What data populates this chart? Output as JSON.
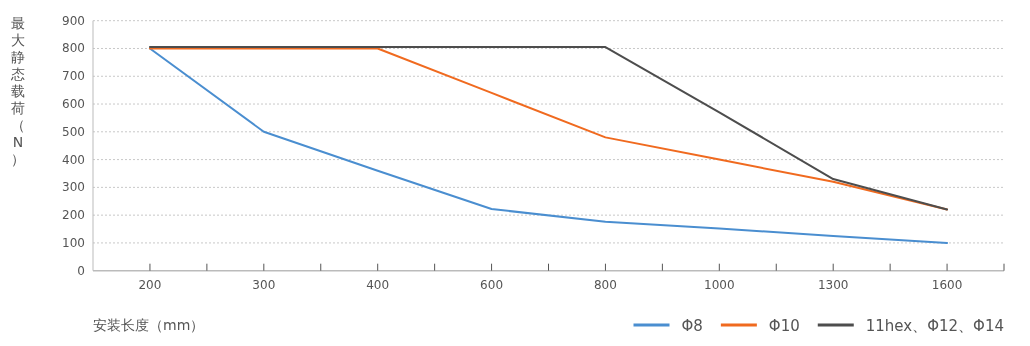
{
  "chart_data": {
    "type": "line",
    "xlabel": "安装长度（mm）",
    "ylabel": "最大静态载荷（N）",
    "categories": [
      "200",
      "300",
      "400",
      "600",
      "800",
      "1000",
      "1300",
      "1600"
    ],
    "ylim": [
      0,
      900
    ],
    "yticks": [
      0,
      100,
      200,
      300,
      400,
      500,
      600,
      700,
      800,
      900
    ],
    "grid": "y",
    "legend": "bottom right",
    "line_style": "solid",
    "marker": "none",
    "series": [
      {
        "name": "Φ8",
        "color": "#4a8ed0",
        "values": [
          800,
          500,
          360,
          222,
          176,
          152,
          125,
          100
        ]
      },
      {
        "name": "Φ10",
        "color": "#f06a1f",
        "values": [
          800,
          800,
          800,
          640,
          480,
          400,
          320,
          220
        ]
      },
      {
        "name": "11hex、Φ12、Φ14",
        "color": "#4d4d4d",
        "values": [
          805,
          805,
          805,
          805,
          805,
          570,
          330,
          220
        ]
      }
    ]
  }
}
